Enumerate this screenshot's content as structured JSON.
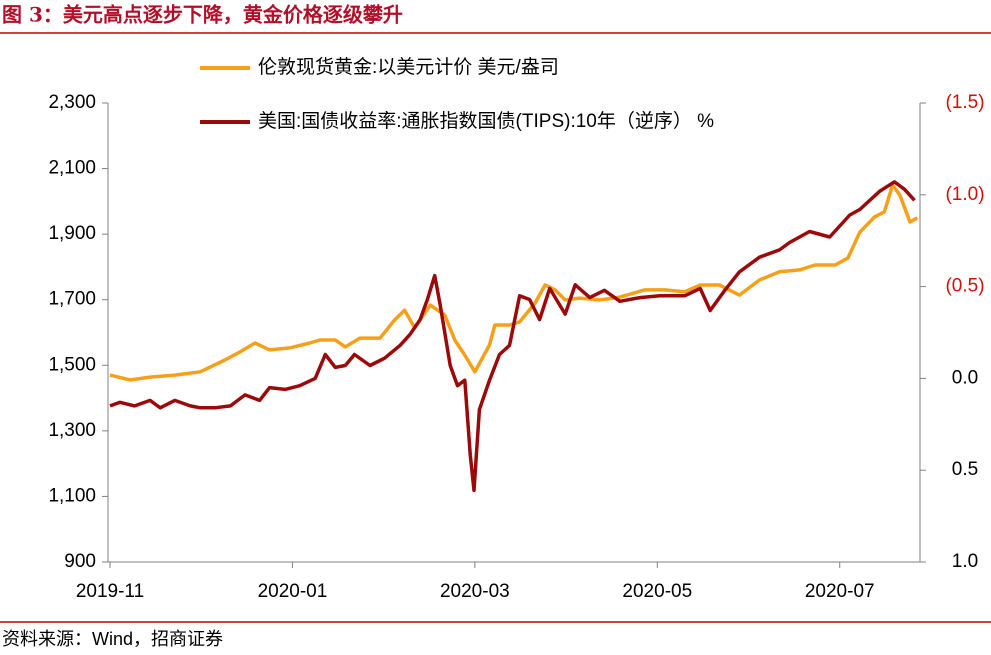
{
  "chart_data": {
    "type": "line",
    "title": "图 3：美元高点逐步下降，黄金价格逐级攀升",
    "source": "资料来源：Wind，招商证券",
    "xlim": [
      0,
      8.88
    ],
    "xticks": [
      {
        "value": 0,
        "label": "2019-11"
      },
      {
        "value": 2,
        "label": "2020-01"
      },
      {
        "value": 4,
        "label": "2020-03"
      },
      {
        "value": 6,
        "label": "2020-05"
      },
      {
        "value": 8,
        "label": "2020-07"
      }
    ],
    "ylim": [
      900,
      2300
    ],
    "yticks": [
      900,
      {
        "value": 1100,
        "label": "1,100"
      },
      {
        "value": 1300,
        "label": "1,300"
      },
      {
        "value": 1500,
        "label": "1,500"
      },
      {
        "value": 1700,
        "label": "1,700"
      },
      {
        "value": 1900,
        "label": "1,900"
      },
      {
        "value": 2100,
        "label": "2,100"
      },
      {
        "value": 2300,
        "label": "2,300"
      }
    ],
    "y2lim": [
      1,
      -1.5
    ],
    "y2ticks": [
      {
        "value": -1.5,
        "label": "(1.5)"
      },
      {
        "value": -1,
        "label": "(1.0)"
      },
      {
        "value": -0.5,
        "label": "(0.5)"
      },
      {
        "value": 0,
        "label": "0.0"
      },
      0.5,
      {
        "value": 1,
        "label": "1.0"
      }
    ],
    "y2_negative_color": "#d01010",
    "legend": "top",
    "series": [
      {
        "name": "伦敦现货黄金:以美元计价 美元/盎司",
        "color": "#f5a01a",
        "x": [
          0,
          0.22,
          0.44,
          0.71,
          0.99,
          1.26,
          1.42,
          1.59,
          1.75,
          1.97,
          2.19,
          2.3,
          2.47,
          2.58,
          2.74,
          2.96,
          3.12,
          3.23,
          3.34,
          3.51,
          3.67,
          3.78,
          3.89,
          4.0,
          4.16,
          4.22,
          4.38,
          4.49,
          4.66,
          4.77,
          4.88,
          4.99,
          5.15,
          5.37,
          5.59,
          5.86,
          6.08,
          6.3,
          6.47,
          6.68,
          6.9,
          7.12,
          7.34,
          7.56,
          7.73,
          7.95,
          8.09,
          8.22,
          8.38,
          8.49,
          8.58,
          8.66,
          8.77,
          8.85
        ],
        "values": [
          1470,
          1455,
          1464,
          1470,
          1480,
          1516,
          1540,
          1568,
          1547,
          1553,
          1568,
          1577,
          1577,
          1556,
          1583,
          1583,
          1638,
          1668,
          1614,
          1684,
          1653,
          1577,
          1531,
          1480,
          1562,
          1623,
          1623,
          1632,
          1690,
          1745,
          1730,
          1699,
          1705,
          1699,
          1708,
          1730,
          1730,
          1724,
          1745,
          1745,
          1714,
          1760,
          1785,
          1791,
          1806,
          1806,
          1827,
          1906,
          1952,
          1968,
          2050,
          2019,
          1937,
          1950
        ]
      },
      {
        "name": "美国:国债收益率:通胀指数国债(TIPS):10年（逆序） %",
        "color": "#9b0a0a",
        "axis": "y2",
        "x": [
          0,
          0.11,
          0.27,
          0.44,
          0.55,
          0.71,
          0.88,
          0.99,
          1.15,
          1.32,
          1.48,
          1.64,
          1.75,
          1.92,
          2.08,
          2.25,
          2.36,
          2.47,
          2.58,
          2.68,
          2.85,
          3.01,
          3.18,
          3.29,
          3.4,
          3.48,
          3.56,
          3.62,
          3.73,
          3.81,
          3.89,
          3.95,
          3.99,
          4.05,
          4.16,
          4.27,
          4.38,
          4.49,
          4.6,
          4.71,
          4.82,
          4.99,
          5.1,
          5.26,
          5.42,
          5.59,
          5.81,
          6.03,
          6.3,
          6.47,
          6.58,
          6.74,
          6.9,
          7.12,
          7.34,
          7.45,
          7.67,
          7.89,
          8.11,
          8.22,
          8.44,
          8.6,
          8.71,
          8.82
        ],
        "values": [
          0.15,
          0.13,
          0.15,
          0.12,
          0.16,
          0.12,
          0.15,
          0.16,
          0.16,
          0.15,
          0.09,
          0.12,
          0.05,
          0.06,
          0.04,
          0,
          -0.13,
          -0.06,
          -0.07,
          -0.13,
          -0.07,
          -0.11,
          -0.18,
          -0.24,
          -0.32,
          -0.43,
          -0.56,
          -0.4,
          -0.07,
          0.04,
          0.01,
          0.42,
          0.61,
          0.17,
          0.01,
          -0.13,
          -0.18,
          -0.45,
          -0.43,
          -0.32,
          -0.49,
          -0.35,
          -0.51,
          -0.44,
          -0.48,
          -0.42,
          -0.44,
          -0.45,
          -0.45,
          -0.49,
          -0.37,
          -0.48,
          -0.58,
          -0.66,
          -0.7,
          -0.74,
          -0.8,
          -0.77,
          -0.89,
          -0.92,
          -1.02,
          -1.07,
          -1.03,
          -0.97
        ]
      }
    ]
  }
}
